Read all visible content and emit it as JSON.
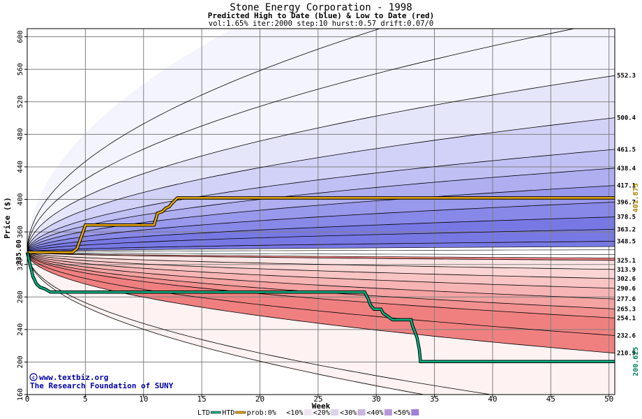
{
  "chart_data": {
    "type": "area",
    "title": "Stone Energy Corporation - 1998",
    "subtitle": "Predicted High to Date (blue) &  Low to Date (red)",
    "params": "vol:1.65% iter:2000 step:10 hurst:0.57 drift:0.07/0",
    "xlabel": "Week",
    "ylabel": "Price ($)",
    "xlim": [
      0,
      50.5
    ],
    "ylim": [
      160,
      610
    ],
    "x_ticks": [
      0,
      5,
      10,
      15,
      20,
      25,
      30,
      35,
      40,
      45,
      50
    ],
    "y_ticks": [
      160,
      200,
      240,
      280,
      320,
      360,
      400,
      440,
      480,
      520,
      560,
      600
    ],
    "grid": true,
    "start_price": 335.0,
    "start_label": "335.00",
    "high_series": {
      "name": "HTD",
      "color": "#e8a800",
      "final_label": "401.875",
      "points": [
        [
          0,
          335
        ],
        [
          3.9,
          335
        ],
        [
          4.3,
          340
        ],
        [
          4.8,
          360
        ],
        [
          5.0,
          368.5
        ],
        [
          10.9,
          368.5
        ],
        [
          11.2,
          383
        ],
        [
          11.6,
          385
        ],
        [
          11.9,
          389
        ],
        [
          12.2,
          391
        ],
        [
          12.5,
          396
        ],
        [
          12.9,
          401.875
        ],
        [
          50.5,
          401.875
        ]
      ]
    },
    "low_series": {
      "name": "LTD",
      "color": "#00b080",
      "final_label": "200.625",
      "points": [
        [
          0,
          335
        ],
        [
          0.5,
          305
        ],
        [
          0.8,
          296
        ],
        [
          1.1,
          292
        ],
        [
          1.5,
          290
        ],
        [
          2.0,
          286
        ],
        [
          29.0,
          286
        ],
        [
          29.3,
          278
        ],
        [
          29.5,
          270
        ],
        [
          29.8,
          265
        ],
        [
          30.4,
          265
        ],
        [
          30.6,
          260
        ],
        [
          31.0,
          256
        ],
        [
          31.4,
          252
        ],
        [
          33.0,
          252
        ],
        [
          33.1,
          245
        ],
        [
          33.3,
          238
        ],
        [
          33.5,
          230
        ],
        [
          33.7,
          215
        ],
        [
          33.8,
          200.625
        ],
        [
          50.5,
          200.625
        ]
      ]
    },
    "quantile_lines": {
      "upper": [
        {
          "end": 552.3,
          "label": "552.3"
        },
        {
          "end": 500.4,
          "label": "500.4"
        },
        {
          "end": 461.5,
          "label": "461.5"
        },
        {
          "end": 438.4,
          "label": "438.4"
        },
        {
          "end": 417.1,
          "label": "417.1"
        },
        {
          "end": 396.7,
          "label": "396.7"
        },
        {
          "end": 378.5,
          "label": "378.5"
        },
        {
          "end": 363.2,
          "label": "363.2"
        },
        {
          "end": 348.5,
          "label": "348.5"
        }
      ],
      "lower": [
        {
          "end": 325.1,
          "label": "325.1"
        },
        {
          "end": 313.9,
          "label": "313.9"
        },
        {
          "end": 302.6,
          "label": "302.6"
        },
        {
          "end": 290.6,
          "label": "290.6"
        },
        {
          "end": 277.6,
          "label": "277.6"
        },
        {
          "end": 265.3,
          "label": "265.3"
        },
        {
          "end": 254.1,
          "label": "254.1"
        },
        {
          "end": 232.6,
          "label": "232.6"
        },
        {
          "end": 210.9,
          "label": "210.9"
        }
      ]
    },
    "legend": {
      "placement": "bottom",
      "items": [
        "LTD",
        "HTD",
        "prob:0%",
        "<10%",
        "<20%",
        "<30%",
        "<40%",
        "<50%"
      ]
    },
    "upper_band_colors": [
      "#f4f4fe",
      "#e6e6fb",
      "#d2d2f8",
      "#c0c0f4",
      "#aeaef0",
      "#9898ec",
      "#8888e8",
      "#7878e4"
    ],
    "lower_band_colors": [
      "#fef2f2",
      "#fde4e4",
      "#fbd4d4",
      "#f9c4c4",
      "#f7b4b4",
      "#f4a2a2",
      "#f29090",
      "#f08080"
    ],
    "legend_colors": [
      "#ffffff",
      "#f1e4f3",
      "#ddd2ea",
      "#c9b4e0",
      "#b897d9",
      "#9f7fd8"
    ],
    "watermark": {
      "line1": "www.textbiz.org",
      "line2": "The Research Foundation of SUNY"
    }
  }
}
